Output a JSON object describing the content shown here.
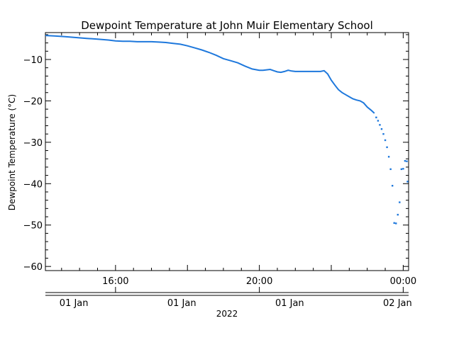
{
  "chart_data": {
    "type": "line",
    "title": "Dewpoint Temperature at John Muir Elementary School",
    "ylabel": "Dewpoint Temperature (°C)",
    "xlabel": "",
    "ylim": [
      -61,
      -3.5
    ],
    "yticks": [
      -10,
      -20,
      -30,
      -40,
      -50,
      -60
    ],
    "ytick_labels": [
      "−10",
      "−20",
      "−30",
      "−40",
      "−50",
      "−60"
    ],
    "x_unit": "hours since 2022-01-01 00:00",
    "xlim": [
      14.05,
      24.15
    ],
    "time_ticks": [
      {
        "x": 16,
        "label": "16:00"
      },
      {
        "x": 20,
        "label": "20:00"
      },
      {
        "x": 24,
        "label": "00:00"
      }
    ],
    "date_ticks": [
      {
        "x": 15,
        "label": "01 Jan"
      },
      {
        "x": 18,
        "label": "01 Jan"
      },
      {
        "x": 21,
        "label": "01 Jan"
      },
      {
        "x": 24,
        "label": "02 Jan"
      }
    ],
    "year_label": "2022",
    "series_color": "#1e78dc",
    "series": [
      {
        "name": "",
        "x": [
          14.05,
          14.3,
          14.6,
          14.9,
          15.2,
          15.5,
          15.8,
          16.0,
          16.2,
          16.4,
          16.6,
          16.8,
          17.0,
          17.2,
          17.4,
          17.6,
          17.8,
          18.0,
          18.2,
          18.4,
          18.6,
          18.8,
          19.0,
          19.2,
          19.4,
          19.6,
          19.8,
          20.0,
          20.1,
          20.2,
          20.3,
          20.4,
          20.5,
          20.6,
          20.7,
          20.8,
          20.9,
          21.0,
          21.2,
          21.4,
          21.5,
          21.6,
          21.7,
          21.8,
          21.9,
          22.0,
          22.1,
          22.2,
          22.3,
          22.4,
          22.5,
          22.6,
          22.7,
          22.8,
          22.9,
          23.0,
          23.1,
          23.2
        ],
        "y": [
          -4.2,
          -4.3,
          -4.5,
          -4.7,
          -4.9,
          -5.1,
          -5.3,
          -5.5,
          -5.6,
          -5.6,
          -5.7,
          -5.7,
          -5.7,
          -5.8,
          -5.9,
          -6.1,
          -6.3,
          -6.7,
          -7.2,
          -7.7,
          -8.3,
          -9.0,
          -9.8,
          -10.3,
          -10.8,
          -11.6,
          -12.3,
          -12.6,
          -12.6,
          -12.5,
          -12.4,
          -12.7,
          -13.0,
          -13.1,
          -12.9,
          -12.6,
          -12.8,
          -12.9,
          -12.9,
          -12.9,
          -12.9,
          -12.9,
          -12.9,
          -12.7,
          -13.5,
          -15.0,
          -16.2,
          -17.3,
          -18.0,
          -18.5,
          -19.0,
          -19.5,
          -19.8,
          -20.0,
          -20.5,
          -21.5,
          -22.2,
          -23.0
        ]
      },
      {
        "name": "",
        "x": [
          23.25,
          23.3,
          23.35,
          23.4,
          23.45,
          23.5,
          23.55,
          23.6,
          23.65,
          23.7,
          23.75,
          23.8,
          23.85,
          23.9,
          23.95,
          24.0,
          24.05,
          24.1,
          24.12
        ],
        "y": [
          -24.0,
          -24.8,
          -25.8,
          -26.8,
          -28.0,
          -29.5,
          -31.2,
          -33.5,
          -36.5,
          -40.5,
          -49.5,
          -49.6,
          -47.5,
          -44.5,
          -36.5,
          -36.4,
          -34.5,
          -34.6,
          -39.5
        ]
      }
    ]
  }
}
